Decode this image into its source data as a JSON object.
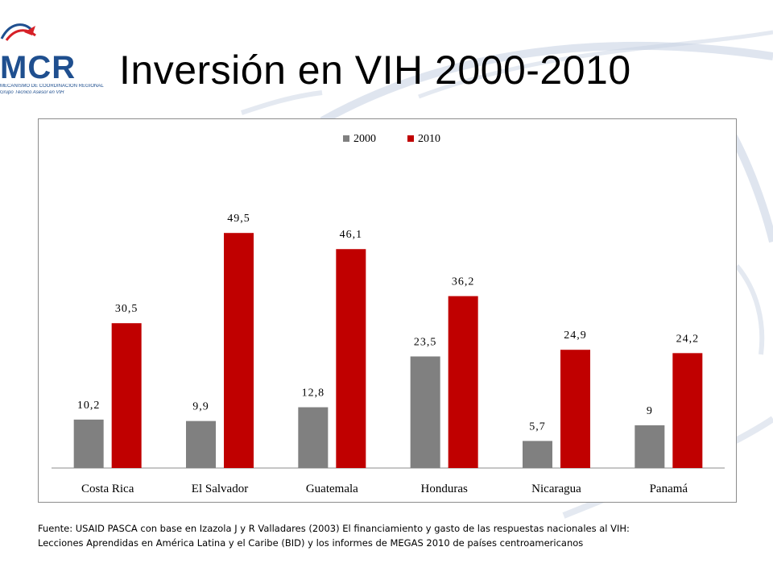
{
  "slide": {
    "title": "Inversión en VIH 2000-2010",
    "logo": {
      "text": "MCR",
      "line1": "MECANISMO DE COORDINACIÓN REGIONAL",
      "line2": "Grupo Técnico Asesor en VIH"
    },
    "footnote": {
      "line1": "Fuente: USAID PASCA con base en Izazola J y R Valladares (2003) El financiamiento y gasto de las respuestas nacionales al VIH:",
      "line2": "Lecciones Aprendidas en América Latina y el Caribe (BID) y los informes de MEGAS 2010 de países centroamericanos"
    }
  },
  "colors": {
    "series_2000": "#808080",
    "series_2010": "#c00000",
    "swoosh": "#c9d3e4",
    "logo_blue": "#1f4f8f",
    "logo_red": "#d62027"
  },
  "chart_data": {
    "type": "bar",
    "title": "",
    "xlabel": "",
    "ylabel": "",
    "categories": [
      "Costa Rica",
      "El Salvador",
      "Guatemala",
      "Honduras",
      "Nicaragua",
      "Panamá"
    ],
    "series": [
      {
        "name": "2000",
        "values": [
          10.2,
          9.9,
          12.8,
          23.5,
          5.7,
          9
        ],
        "labels": [
          "10,2",
          "9,9",
          "12,8",
          "23,5",
          "5,7",
          "9"
        ]
      },
      {
        "name": "2010",
        "values": [
          30.5,
          49.5,
          46.1,
          36.2,
          24.9,
          24.2
        ],
        "labels": [
          "30,5",
          "49,5",
          "46,1",
          "36,2",
          "24,9",
          "24,2"
        ]
      }
    ],
    "ylim": [
      0,
      60
    ],
    "grid": false,
    "legend": "top-center",
    "data_labels": true
  }
}
